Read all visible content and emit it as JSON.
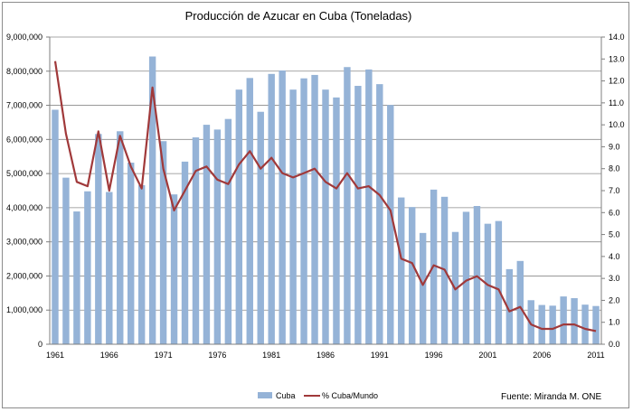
{
  "chart_data": {
    "type": "bar",
    "title": "Producción de Azucar en Cuba (Toneladas)",
    "x": [
      1961,
      1962,
      1963,
      1964,
      1965,
      1966,
      1967,
      1968,
      1969,
      1970,
      1971,
      1972,
      1973,
      1974,
      1975,
      1976,
      1977,
      1978,
      1979,
      1980,
      1981,
      1982,
      1983,
      1984,
      1985,
      1986,
      1987,
      1988,
      1989,
      1990,
      1991,
      1992,
      1993,
      1994,
      1995,
      1996,
      1997,
      1998,
      1999,
      2000,
      2001,
      2002,
      2003,
      2004,
      2005,
      2006,
      2007,
      2008,
      2009,
      2010,
      2011
    ],
    "x_tick_labels": [
      "1961",
      "1966",
      "1971",
      "1976",
      "1981",
      "1986",
      "1991",
      "1996",
      "2001",
      "2006",
      "2011"
    ],
    "series": [
      {
        "name": "Cuba",
        "type": "bar",
        "axis": "left",
        "color": "#95B3D7",
        "values": [
          6870000,
          4880000,
          3890000,
          4480000,
          6160000,
          4460000,
          6240000,
          5320000,
          4660000,
          8430000,
          5950000,
          4390000,
          5350000,
          6060000,
          6430000,
          6290000,
          6600000,
          7460000,
          7800000,
          6810000,
          7920000,
          8020000,
          7460000,
          7790000,
          7890000,
          7460000,
          7230000,
          8120000,
          7570000,
          8050000,
          7620000,
          7010000,
          4300000,
          4020000,
          3260000,
          4530000,
          4320000,
          3290000,
          3880000,
          4050000,
          3530000,
          3610000,
          2200000,
          2440000,
          1290000,
          1150000,
          1130000,
          1400000,
          1350000,
          1160000,
          1120000
        ]
      },
      {
        "name": "% Cuba/Mundo",
        "type": "line",
        "axis": "right",
        "color": "#A0393A",
        "values": [
          12.9,
          9.6,
          7.4,
          7.2,
          9.7,
          7.0,
          9.5,
          8.1,
          7.1,
          11.7,
          8.0,
          6.1,
          7.0,
          7.9,
          8.1,
          7.5,
          7.3,
          8.2,
          8.8,
          8.0,
          8.5,
          7.8,
          7.6,
          7.8,
          8.0,
          7.4,
          7.1,
          7.8,
          7.1,
          7.2,
          6.8,
          6.1,
          3.9,
          3.7,
          2.7,
          3.6,
          3.4,
          2.5,
          2.9,
          3.1,
          2.7,
          2.5,
          1.5,
          1.7,
          0.9,
          0.7,
          0.7,
          0.9,
          0.9,
          0.7,
          0.6
        ]
      }
    ],
    "y_left": {
      "min": 0,
      "max": 9000000,
      "step": 1000000,
      "tick_labels": [
        "0",
        "1,000,000",
        "2,000,000",
        "3,000,000",
        "4,000,000",
        "5,000,000",
        "6,000,000",
        "7,000,000",
        "8,000,000",
        "9,000,000"
      ]
    },
    "y_right": {
      "min": 0,
      "max": 14,
      "step": 1,
      "tick_labels": [
        "0.0",
        "1.0",
        "2.0",
        "3.0",
        "4.0",
        "5.0",
        "6.0",
        "7.0",
        "8.0",
        "9.0",
        "10.0",
        "11.0",
        "12.0",
        "13.0",
        "14.0"
      ]
    },
    "grid": true,
    "legend_position": "bottom",
    "source_note": "Fuente: Miranda M. ONE"
  }
}
